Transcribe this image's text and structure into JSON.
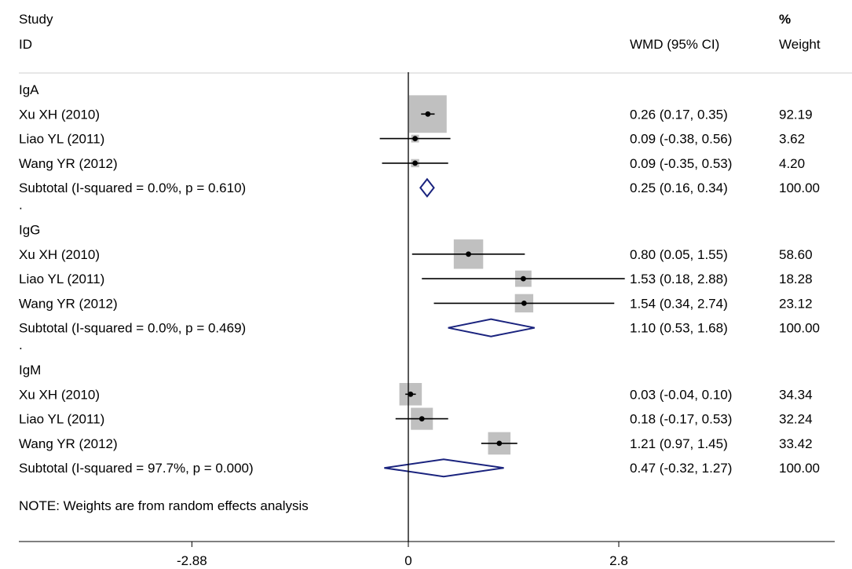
{
  "chart_data": {
    "type": "forest",
    "header": {
      "study_label_1": "Study",
      "study_label_2": "ID",
      "effect_header": "WMD (95% CI)",
      "weight_header_1": "%",
      "weight_header_2": "Weight"
    },
    "x_ticks": [
      {
        "value": -2.88,
        "label": "-2.88"
      },
      {
        "value": 0,
        "label": "0"
      },
      {
        "value": 2.8,
        "label": "2.8"
      }
    ],
    "xlim": [
      -4.5,
      4.5
    ],
    "clip_right": 3.1,
    "reference_line": 0,
    "groups": [
      {
        "name": "IgA",
        "studies": [
          {
            "label": "Xu XH (2010)",
            "est": 0.26,
            "lo": 0.17,
            "hi": 0.35,
            "ci_text": "0.26 (0.17, 0.35)",
            "weight": "92.19",
            "box": 0.92
          },
          {
            "label": "Liao YL (2011)",
            "est": 0.09,
            "lo": -0.38,
            "hi": 0.56,
            "ci_text": "0.09 (-0.38, 0.56)",
            "weight": "3.62",
            "box": 0.19
          },
          {
            "label": "Wang YR (2012)",
            "est": 0.09,
            "lo": -0.35,
            "hi": 0.53,
            "ci_text": "0.09 (-0.35, 0.53)",
            "weight": "4.20",
            "box": 0.2
          }
        ],
        "subtotal": {
          "label": "Subtotal  (I-squared = 0.0%, p = 0.610)",
          "est": 0.25,
          "lo": 0.16,
          "hi": 0.34,
          "ci_text": "0.25 (0.16, 0.34)",
          "weight": "100.00"
        }
      },
      {
        "name": "IgG",
        "studies": [
          {
            "label": "Xu XH (2010)",
            "est": 0.8,
            "lo": 0.05,
            "hi": 1.55,
            "ci_text": "0.80 (0.05, 1.55)",
            "weight": "58.60",
            "box": 0.72
          },
          {
            "label": "Liao YL (2011)",
            "est": 1.53,
            "lo": 0.18,
            "hi": 2.88,
            "ci_text": "1.53 (0.18, 2.88)",
            "weight": "18.28",
            "box": 0.4
          },
          {
            "label": "Wang YR (2012)",
            "est": 1.54,
            "lo": 0.34,
            "hi": 2.74,
            "ci_text": "1.54 (0.34, 2.74)",
            "weight": "23.12",
            "box": 0.45
          }
        ],
        "subtotal": {
          "label": "Subtotal  (I-squared = 0.0%, p = 0.469)",
          "est": 1.1,
          "lo": 0.53,
          "hi": 1.68,
          "ci_text": "1.10 (0.53, 1.68)",
          "weight": "100.00"
        }
      },
      {
        "name": "IgM",
        "studies": [
          {
            "label": "Xu XH (2010)",
            "est": 0.03,
            "lo": -0.04,
            "hi": 0.1,
            "ci_text": "0.03 (-0.04, 0.10)",
            "weight": "34.34",
            "box": 0.55
          },
          {
            "label": "Liao YL (2011)",
            "est": 0.18,
            "lo": -0.17,
            "hi": 0.53,
            "ci_text": "0.18 (-0.17, 0.53)",
            "weight": "32.24",
            "box": 0.54
          },
          {
            "label": "Wang YR (2012)",
            "est": 1.21,
            "lo": 0.97,
            "hi": 1.45,
            "ci_text": "1.21 (0.97, 1.45)",
            "weight": "33.42",
            "box": 0.55
          }
        ],
        "subtotal": {
          "label": "Subtotal  (I-squared = 97.7%, p = 0.000)",
          "est": 0.47,
          "lo": -0.32,
          "hi": 1.27,
          "ci_text": "0.47 (-0.32, 1.27)",
          "weight": "100.00"
        }
      }
    ],
    "note": "NOTE: Weights are from random effects analysis",
    "colors": {
      "box": "#c0c0c0",
      "diamond": "#1a237e",
      "line": "#000000"
    }
  }
}
